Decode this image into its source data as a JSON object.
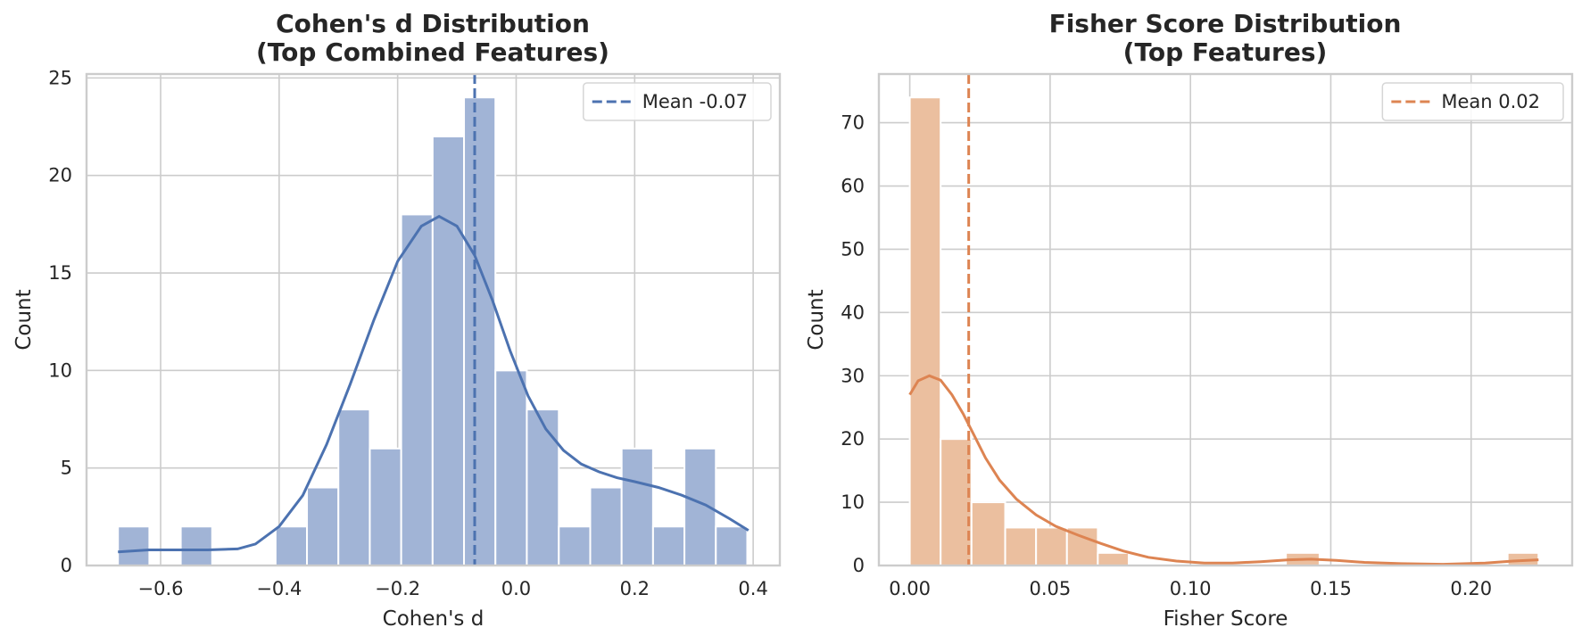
{
  "chart_data": [
    {
      "type": "histogram",
      "title": "Cohen's d Distribution\n(Top Combined Features)",
      "xlabel": "Cohen's d",
      "ylabel": "Count",
      "xlim": [
        -0.725,
        0.445
      ],
      "ylim": [
        0,
        25.2
      ],
      "xticks": [
        -0.6,
        -0.4,
        -0.2,
        0.0,
        0.2,
        0.4
      ],
      "xtick_labels": [
        "−0.6",
        "−0.4",
        "−0.2",
        "0.0",
        "0.2",
        "0.4"
      ],
      "yticks": [
        0,
        5,
        10,
        15,
        20,
        25
      ],
      "ytick_labels": [
        "0",
        "5",
        "10",
        "15",
        "20",
        "25"
      ],
      "grid": true,
      "color": "#4c72b0",
      "bar_color": "#a1b4d6",
      "bins": [
        {
          "x0": -0.672,
          "x1": -0.619,
          "count": 2
        },
        {
          "x0": -0.619,
          "x1": -0.566,
          "count": 0
        },
        {
          "x0": -0.566,
          "x1": -0.513,
          "count": 2
        },
        {
          "x0": -0.513,
          "x1": -0.46,
          "count": 0
        },
        {
          "x0": -0.46,
          "x1": -0.406,
          "count": 0
        },
        {
          "x0": -0.406,
          "x1": -0.353,
          "count": 2
        },
        {
          "x0": -0.353,
          "x1": -0.3,
          "count": 4
        },
        {
          "x0": -0.3,
          "x1": -0.247,
          "count": 8
        },
        {
          "x0": -0.247,
          "x1": -0.194,
          "count": 6
        },
        {
          "x0": -0.194,
          "x1": -0.141,
          "count": 18
        },
        {
          "x0": -0.141,
          "x1": -0.088,
          "count": 22
        },
        {
          "x0": -0.088,
          "x1": -0.035,
          "count": 24
        },
        {
          "x0": -0.035,
          "x1": 0.018,
          "count": 10
        },
        {
          "x0": 0.018,
          "x1": 0.072,
          "count": 8
        },
        {
          "x0": 0.072,
          "x1": 0.125,
          "count": 2
        },
        {
          "x0": 0.125,
          "x1": 0.178,
          "count": 4
        },
        {
          "x0": 0.178,
          "x1": 0.231,
          "count": 6
        },
        {
          "x0": 0.231,
          "x1": 0.284,
          "count": 2
        },
        {
          "x0": 0.284,
          "x1": 0.337,
          "count": 6
        },
        {
          "x0": 0.337,
          "x1": 0.39,
          "count": 2
        }
      ],
      "kde": [
        [
          -0.672,
          0.7
        ],
        [
          -0.62,
          0.8
        ],
        [
          -0.57,
          0.8
        ],
        [
          -0.52,
          0.8
        ],
        [
          -0.47,
          0.85
        ],
        [
          -0.44,
          1.1
        ],
        [
          -0.4,
          2.0
        ],
        [
          -0.36,
          3.6
        ],
        [
          -0.32,
          6.2
        ],
        [
          -0.28,
          9.3
        ],
        [
          -0.24,
          12.6
        ],
        [
          -0.2,
          15.6
        ],
        [
          -0.16,
          17.4
        ],
        [
          -0.13,
          17.9
        ],
        [
          -0.1,
          17.4
        ],
        [
          -0.07,
          15.9
        ],
        [
          -0.04,
          13.6
        ],
        [
          -0.01,
          11.0
        ],
        [
          0.02,
          8.7
        ],
        [
          0.05,
          7.0
        ],
        [
          0.08,
          5.9
        ],
        [
          0.11,
          5.2
        ],
        [
          0.14,
          4.8
        ],
        [
          0.17,
          4.5
        ],
        [
          0.2,
          4.3
        ],
        [
          0.24,
          4.0
        ],
        [
          0.28,
          3.6
        ],
        [
          0.32,
          3.1
        ],
        [
          0.36,
          2.4
        ],
        [
          0.392,
          1.8
        ]
      ],
      "mean_line": {
        "x": -0.07,
        "label": "Mean -0.07"
      },
      "legend": {
        "placement": "top-right",
        "entries": [
          "Mean -0.07"
        ]
      }
    },
    {
      "type": "histogram",
      "title": "Fisher Score Distribution\n(Top Features)",
      "xlabel": "Fisher Score",
      "ylabel": "Count",
      "xlim": [
        -0.011,
        0.236
      ],
      "ylim": [
        0,
        77.7
      ],
      "xticks": [
        0.0,
        0.05,
        0.1,
        0.15,
        0.2
      ],
      "xtick_labels": [
        "0.00",
        "0.05",
        "0.10",
        "0.15",
        "0.20"
      ],
      "yticks": [
        0,
        10,
        20,
        30,
        40,
        50,
        60,
        70
      ],
      "ytick_labels": [
        "0",
        "10",
        "20",
        "30",
        "40",
        "50",
        "60",
        "70"
      ],
      "grid": true,
      "color": "#dd8452",
      "bar_color": "#ebbf9f",
      "bins": [
        {
          "x0": 0.0,
          "x1": 0.011,
          "count": 74
        },
        {
          "x0": 0.011,
          "x1": 0.022,
          "count": 20
        },
        {
          "x0": 0.022,
          "x1": 0.034,
          "count": 10
        },
        {
          "x0": 0.034,
          "x1": 0.045,
          "count": 6
        },
        {
          "x0": 0.045,
          "x1": 0.056,
          "count": 6
        },
        {
          "x0": 0.056,
          "x1": 0.067,
          "count": 6
        },
        {
          "x0": 0.067,
          "x1": 0.078,
          "count": 2
        },
        {
          "x0": 0.078,
          "x1": 0.09,
          "count": 0
        },
        {
          "x0": 0.09,
          "x1": 0.101,
          "count": 0
        },
        {
          "x0": 0.101,
          "x1": 0.112,
          "count": 0
        },
        {
          "x0": 0.112,
          "x1": 0.123,
          "count": 0
        },
        {
          "x0": 0.123,
          "x1": 0.134,
          "count": 0
        },
        {
          "x0": 0.134,
          "x1": 0.146,
          "count": 2
        },
        {
          "x0": 0.146,
          "x1": 0.157,
          "count": 0
        },
        {
          "x0": 0.157,
          "x1": 0.168,
          "count": 0
        },
        {
          "x0": 0.168,
          "x1": 0.179,
          "count": 0
        },
        {
          "x0": 0.179,
          "x1": 0.19,
          "count": 0
        },
        {
          "x0": 0.19,
          "x1": 0.202,
          "count": 0
        },
        {
          "x0": 0.202,
          "x1": 0.213,
          "count": 0
        },
        {
          "x0": 0.213,
          "x1": 0.224,
          "count": 2
        }
      ],
      "kde": [
        [
          0.0,
          27.0
        ],
        [
          0.003,
          29.2
        ],
        [
          0.007,
          30.0
        ],
        [
          0.011,
          29.3
        ],
        [
          0.015,
          27.0
        ],
        [
          0.019,
          24.0
        ],
        [
          0.023,
          20.5
        ],
        [
          0.027,
          17.0
        ],
        [
          0.032,
          13.5
        ],
        [
          0.038,
          10.5
        ],
        [
          0.045,
          8.0
        ],
        [
          0.052,
          6.2
        ],
        [
          0.06,
          4.8
        ],
        [
          0.068,
          3.5
        ],
        [
          0.076,
          2.3
        ],
        [
          0.085,
          1.3
        ],
        [
          0.095,
          0.7
        ],
        [
          0.105,
          0.4
        ],
        [
          0.115,
          0.4
        ],
        [
          0.125,
          0.6
        ],
        [
          0.135,
          0.9
        ],
        [
          0.143,
          1.0
        ],
        [
          0.152,
          0.8
        ],
        [
          0.162,
          0.5
        ],
        [
          0.175,
          0.3
        ],
        [
          0.19,
          0.2
        ],
        [
          0.205,
          0.4
        ],
        [
          0.215,
          0.7
        ],
        [
          0.224,
          0.9
        ]
      ],
      "mean_line": {
        "x": 0.021,
        "label": "Mean 0.02"
      },
      "legend": {
        "placement": "top-right",
        "entries": [
          "Mean 0.02"
        ]
      }
    }
  ]
}
